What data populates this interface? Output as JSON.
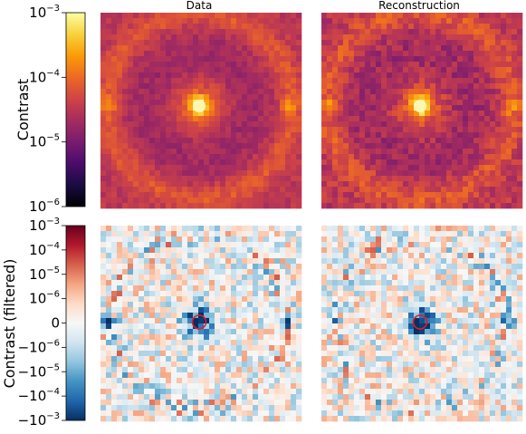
{
  "panels": {
    "top_left_title": "Data",
    "top_right_title": "Reconstruction"
  },
  "colorbars": {
    "top": {
      "label": "Contrast",
      "scale": "log",
      "colormap": "inferno",
      "ticks": [
        {
          "base": "10",
          "exp": "−3"
        },
        {
          "base": "10",
          "exp": "−4"
        },
        {
          "base": "10",
          "exp": "−5"
        },
        {
          "base": "10",
          "exp": "−6"
        }
      ]
    },
    "bottom": {
      "label": "Contrast (filtered)",
      "scale": "symlog",
      "colormap": "RdBu (diverging, blue positive, red negative)",
      "ticks": [
        {
          "base": "10",
          "exp": "−3",
          "prefix": ""
        },
        {
          "base": "10",
          "exp": "−4",
          "prefix": ""
        },
        {
          "base": "10",
          "exp": "−5",
          "prefix": ""
        },
        {
          "base": "10",
          "exp": "−6",
          "prefix": ""
        },
        {
          "base": "0",
          "exp": "",
          "prefix": ""
        },
        {
          "base": "10",
          "exp": "−6",
          "prefix": "−"
        },
        {
          "base": "10",
          "exp": "−5",
          "prefix": "−"
        },
        {
          "base": "10",
          "exp": "−4",
          "prefix": "−"
        },
        {
          "base": "10",
          "exp": "−3",
          "prefix": "−"
        }
      ]
    }
  },
  "chart_data": [
    {
      "type": "heatmap",
      "title": "Data",
      "colorbar": "top",
      "description_values": {
        "center_peak": "~1e-3",
        "ring_level": "~1e-4",
        "background": "~1e-5"
      }
    },
    {
      "type": "heatmap",
      "title": "Reconstruction",
      "colorbar": "top",
      "description_values": {
        "center_peak": "~1e-3",
        "ring_level": "~1e-4",
        "background": "~1e-5"
      }
    },
    {
      "type": "heatmap",
      "title": "",
      "colorbar": "bottom",
      "marker": "red circle at center"
    },
    {
      "type": "heatmap",
      "title": "",
      "colorbar": "bottom",
      "marker": "red circle at center"
    }
  ],
  "colors": {
    "inferno": [
      "#000004",
      "#1b0c41",
      "#4a0c6b",
      "#781c6d",
      "#a52c60",
      "#cf4446",
      "#ed6925",
      "#fb9b06",
      "#f7d13d",
      "#fcffa4"
    ],
    "rdbu": [
      "#67001f",
      "#b2182b",
      "#d6604d",
      "#f4a582",
      "#fddbc7",
      "#f7f7f7",
      "#d1e5f0",
      "#92c5de",
      "#4393c3",
      "#2166ac",
      "#053061"
    ],
    "marker": "#e8182b"
  }
}
